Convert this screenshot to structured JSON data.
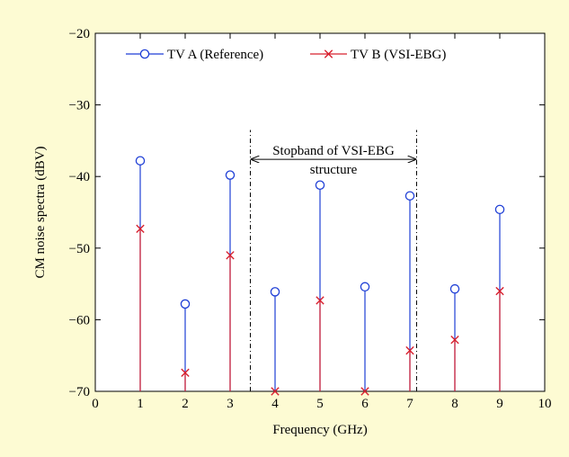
{
  "chart_data": {
    "type": "stem",
    "xlabel": "Frequency (GHz)",
    "ylabel": "CM noise spectra (dBV)",
    "xlim": [
      0,
      10
    ],
    "ylim": [
      -70,
      -20
    ],
    "xticks": [
      0,
      1,
      2,
      3,
      4,
      5,
      6,
      7,
      8,
      9,
      10
    ],
    "yticks": [
      -70,
      -60,
      -50,
      -40,
      -30,
      -20
    ],
    "ytick_labels": [
      "−70",
      "−60",
      "−50",
      "−40",
      "−30",
      "−20"
    ],
    "grid": false,
    "legend_position": "top",
    "series": [
      {
        "name": "TV A (Reference)",
        "color": "#1f3fd6",
        "marker": "circle",
        "x": [
          1,
          2,
          3,
          4,
          5,
          6,
          7,
          8,
          9
        ],
        "y": [
          -37.8,
          -57.8,
          -39.8,
          -56.1,
          -41.2,
          -55.4,
          -42.7,
          -55.7,
          -44.6
        ]
      },
      {
        "name": "TV B (VSI-EBG)",
        "color": "#d8202e",
        "marker": "x",
        "x": [
          1,
          2,
          3,
          4,
          5,
          6,
          7,
          8,
          9
        ],
        "y": [
          -47.3,
          -67.4,
          -51.0,
          -70.0,
          -57.3,
          -70.0,
          -64.3,
          -62.8,
          -56.0
        ]
      }
    ],
    "annotation": {
      "lines": [
        "Stopband of VSI-EBG",
        "structure"
      ],
      "x_start": 3.45,
      "x_end": 7.15,
      "arrow_y": -37.6
    }
  }
}
